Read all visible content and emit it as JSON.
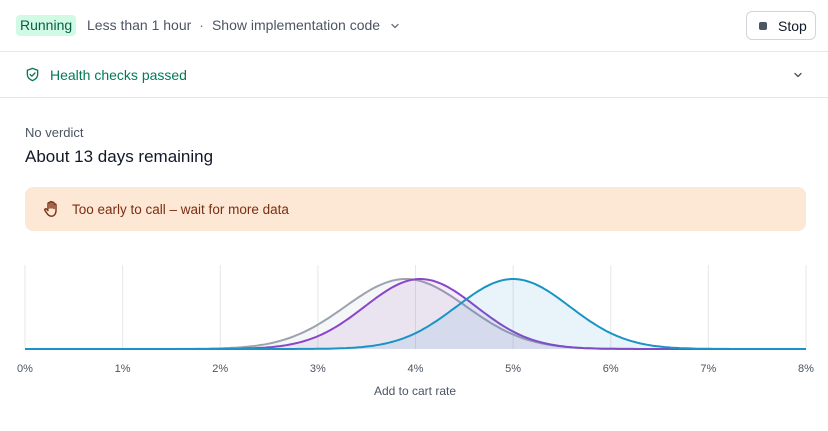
{
  "header": {
    "status_badge": "Running",
    "duration": "Less than 1 hour",
    "separator": "·",
    "implementation_link": "Show implementation code",
    "stop_label": "Stop"
  },
  "health": {
    "label": "Health checks passed"
  },
  "summary": {
    "verdict": "No verdict",
    "remaining": "About 13 days remaining"
  },
  "alert": {
    "message": "Too early to call – wait for more data"
  },
  "colors": {
    "running_bg": "#d1fae5",
    "running_text": "#065f46",
    "health_green": "#047857",
    "alert_bg": "#fce8d4",
    "alert_text": "#7c2d12",
    "series_gray": "#9ca3af",
    "series_purple": "#8b45c9",
    "series_blue": "#1a94c4"
  },
  "chart_data": {
    "type": "area",
    "xlabel": "Add to cart rate",
    "ylabel": "",
    "xlim": [
      0,
      8
    ],
    "x_ticks": [
      "0%",
      "1%",
      "2%",
      "3%",
      "4%",
      "5%",
      "6%",
      "7%",
      "8%"
    ],
    "grid": true,
    "series": [
      {
        "mean": 3.9,
        "sd": 0.62,
        "color": "#9ca3af",
        "fill": "rgba(156,163,175,0.10)"
      },
      {
        "mean": 4.05,
        "sd": 0.57,
        "color": "#8b45c9",
        "fill": "rgba(139,69,201,0.10)"
      },
      {
        "mean": 5.0,
        "sd": 0.58,
        "color": "#1a94c4",
        "fill": "rgba(26,148,196,0.10)"
      }
    ]
  }
}
